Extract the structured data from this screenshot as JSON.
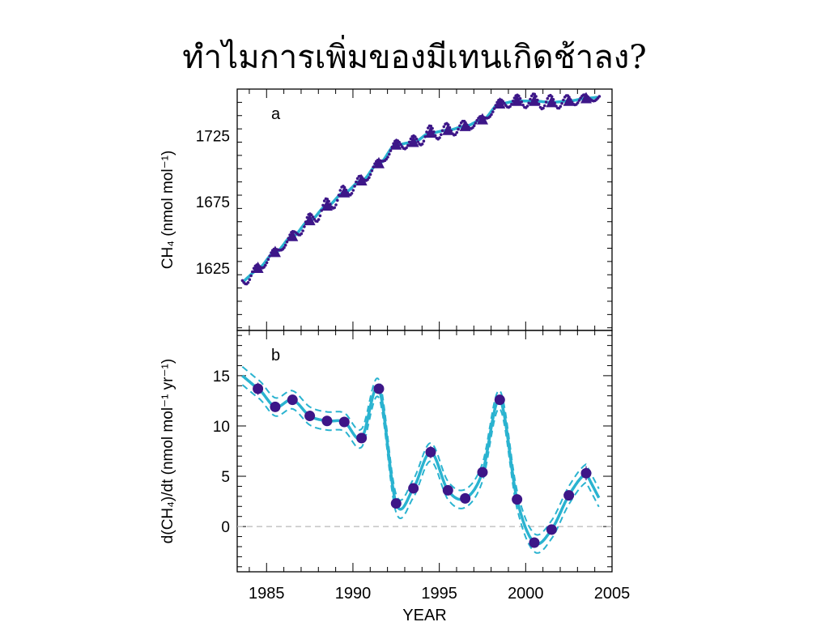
{
  "title": "ทำไมการเพิ่มของมีเทนเกิดช้าลง?",
  "colors": {
    "series_point": "#3d1688",
    "fit_line": "#2ab3d0",
    "zero_line": "#b8b8b8",
    "axis": "#000000"
  },
  "chart_data": [
    {
      "type": "scatter",
      "panel_label": "a",
      "xlabel": "",
      "ylabel": "CH₄ (nmol mol⁻¹)",
      "xlim": [
        1983.3,
        2005
      ],
      "ylim": [
        1578,
        1760
      ],
      "xticks": [
        1985,
        1990,
        1995,
        2000,
        2005
      ],
      "yticks": [
        1625,
        1675,
        1725
      ],
      "ytick_labels": [
        "1625",
        "1675",
        "1725"
      ],
      "grid": false,
      "series": [
        {
          "marker": "triangle",
          "x": [
            1984.5,
            1985.5,
            1986.5,
            1987.5,
            1988.5,
            1989.5,
            1990.5,
            1991.5,
            1992.5,
            1993.5,
            1994.5,
            1995.5,
            1996.5,
            1997.5,
            1998.5,
            1999.5,
            2000.5,
            2001.5,
            2002.5,
            2003.5
          ],
          "y": [
            1625,
            1637,
            1649,
            1661,
            1672,
            1682,
            1691,
            1704,
            1718,
            1720,
            1727,
            1729,
            1732,
            1737,
            1749,
            1751,
            1751,
            1750,
            1751,
            1753
          ]
        }
      ]
    },
    {
      "type": "scatter",
      "panel_label": "b",
      "xlabel": "YEAR",
      "ylabel": "d(CH₄)/dt (nmol mol⁻¹ yr⁻¹)",
      "xlim": [
        1983.3,
        2005
      ],
      "ylim": [
        -4.5,
        19.5
      ],
      "xticks": [
        1985,
        1990,
        1995,
        2000,
        2005
      ],
      "xtick_labels": [
        "1985",
        "1990",
        "1995",
        "2000",
        "2005"
      ],
      "yticks": [
        0,
        5,
        10,
        15
      ],
      "ytick_labels": [
        "0",
        "5",
        "10",
        "15"
      ],
      "grid": false,
      "zero_line": 0,
      "series": [
        {
          "marker": "circle",
          "x": [
            1984.5,
            1985.5,
            1986.5,
            1987.5,
            1988.5,
            1989.5,
            1990.5,
            1991.5,
            1992.5,
            1993.5,
            1994.5,
            1995.5,
            1996.5,
            1997.5,
            1998.5,
            1999.5,
            2000.5,
            2001.5,
            2002.5,
            2003.5
          ],
          "y": [
            13.7,
            11.9,
            12.6,
            11.0,
            10.5,
            10.4,
            8.8,
            13.7,
            2.3,
            3.8,
            7.4,
            3.6,
            2.8,
            5.4,
            12.6,
            2.7,
            -1.6,
            -0.3,
            3.1,
            5.3
          ],
          "err": [
            0.6,
            0.5,
            0.5,
            0.4,
            0.4,
            0.4,
            0.4,
            0.5,
            0.4,
            0.4,
            0.6,
            0.4,
            0.4,
            0.4,
            0.4,
            0.4,
            0.5,
            0.4,
            0.4,
            0.7
          ]
        }
      ]
    }
  ]
}
